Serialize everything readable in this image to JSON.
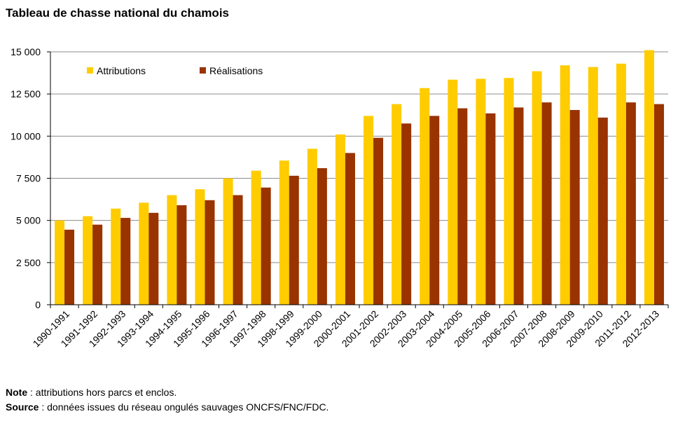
{
  "chart_data": {
    "type": "bar",
    "title": "Tableau de chasse national du chamois",
    "xlabel": "",
    "ylabel": "",
    "ylim": [
      0,
      15000
    ],
    "yticks": [
      0,
      2500,
      5000,
      7500,
      10000,
      12500,
      15000
    ],
    "ytick_labels": [
      "0",
      "2 500",
      "5 000",
      "7 500",
      "10 000",
      "12 500",
      "15 000"
    ],
    "grid": true,
    "legend_position": "top-left",
    "categories": [
      "1990-1991",
      "1991-1992",
      "1992-1993",
      "1993-1994",
      "1994-1995",
      "1995-1996",
      "1996-1997",
      "1997-1998",
      "1998-1999",
      "1999-2000",
      "2000-2001",
      "2001-2002",
      "2002-2003",
      "2003-2004",
      "2004-2005",
      "2005-2006",
      "2006-2007",
      "2007-2008",
      "2008-2009",
      "2009-2010",
      "2011-2012",
      "2012-2013"
    ],
    "series": [
      {
        "name": "Attributions",
        "color": "#FFCC00",
        "values": [
          5000,
          5250,
          5700,
          6050,
          6500,
          6850,
          7500,
          7950,
          8550,
          9250,
          10100,
          11200,
          11900,
          12850,
          13350,
          13400,
          13450,
          13850,
          14200,
          14100,
          14300,
          15100
        ]
      },
      {
        "name": "Réalisations",
        "color": "#993300",
        "values": [
          4450,
          4750,
          5150,
          5450,
          5900,
          6200,
          6500,
          6950,
          7650,
          8100,
          9000,
          9900,
          10750,
          11200,
          11650,
          11350,
          11700,
          12000,
          11550,
          11100,
          12000,
          11900
        ]
      }
    ]
  },
  "notes": {
    "note_label": "Note",
    "note_text": " : attributions hors parcs et enclos.",
    "source_label": "Source",
    "source_text": " : données issues du réseau ongulés sauvages ONCFS/FNC/FDC."
  }
}
